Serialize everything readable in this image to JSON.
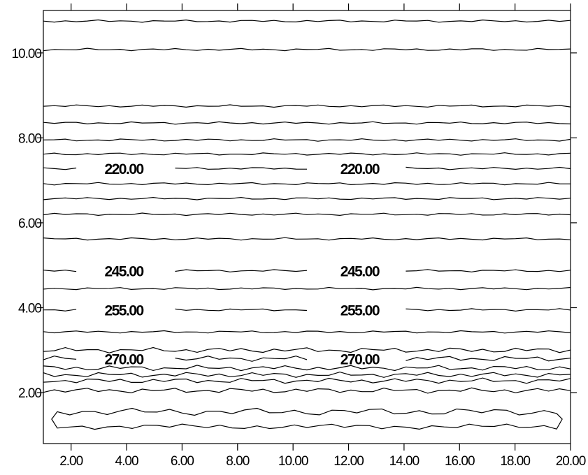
{
  "chart_data": {
    "type": "contour",
    "title": "",
    "xlabel": "",
    "ylabel": "",
    "xlim": [
      1.0,
      20.0
    ],
    "ylim": [
      0.8,
      11.0
    ],
    "x_ticks": [
      2,
      4,
      6,
      8,
      10,
      12,
      14,
      16,
      18,
      20
    ],
    "x_tick_labels": [
      "2.00",
      "4.00",
      "6.00",
      "8.00",
      "10.00",
      "12.00",
      "14.00",
      "16.00",
      "18.00",
      "20.00"
    ],
    "y_ticks": [
      2,
      4,
      6,
      8,
      10
    ],
    "y_tick_labels": [
      "2.00",
      "4.00",
      "6.00",
      "8.00",
      "10.00"
    ],
    "grid": false,
    "contour_levels_y": [
      10.75,
      10.08,
      8.75,
      8.35,
      7.95,
      7.62,
      7.28,
      6.92,
      6.57,
      6.2,
      5.62,
      4.87,
      4.45,
      3.95,
      3.43,
      3.0,
      2.8,
      2.58,
      2.42,
      2.28,
      2.05
    ],
    "closed_contour": {
      "y_top": 1.55,
      "y_bottom": 1.2,
      "x_start": 1.3,
      "x_end": 19.7
    },
    "contour_labels": [
      {
        "text": "220.00",
        "x": 3.9,
        "y": 7.28
      },
      {
        "text": "220.00",
        "x": 12.4,
        "y": 7.28
      },
      {
        "text": "245.00",
        "x": 3.9,
        "y": 4.87
      },
      {
        "text": "245.00",
        "x": 12.4,
        "y": 4.87
      },
      {
        "text": "255.00",
        "x": 3.9,
        "y": 3.95
      },
      {
        "text": "255.00",
        "x": 12.4,
        "y": 3.95
      },
      {
        "text": "270.00",
        "x": 3.9,
        "y": 2.8
      },
      {
        "text": "270.00",
        "x": 12.4,
        "y": 2.8
      }
    ]
  }
}
